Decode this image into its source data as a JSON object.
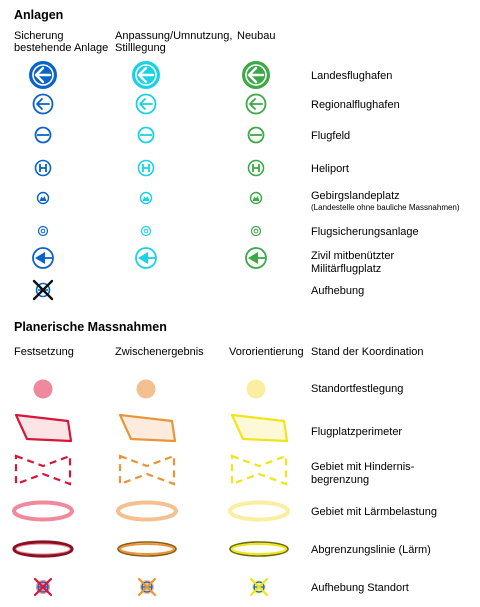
{
  "colors": {
    "blue": "#0a64c8",
    "cyan": "#18d2e6",
    "green": "#3ca846",
    "red": "#d4173a",
    "orange": "#e8953a",
    "yellow": "#f0e51a",
    "pink": "#f0899b",
    "peach": "#f5c090",
    "lightyellow": "#faeea0"
  },
  "anlagen": {
    "title": "Anlagen",
    "columns": [
      "Sicherung\nbestehende Anlage",
      "Anpassung/Umnutzung,\nStilllegung",
      "Neubau"
    ],
    "col1_line1": "Sicherung",
    "col1_line2": "bestehende Anlage",
    "col2_line1": "Anpassung/Umnutzung,",
    "col2_line2": "Stilllegung",
    "col3": "Neubau",
    "rows": [
      {
        "label": "Landesflughafen",
        "icon": "landesflughafen-icon"
      },
      {
        "label": "Regionalflughafen",
        "icon": "regionalflughafen-icon"
      },
      {
        "label": "Flugfeld",
        "icon": "flugfeld-icon"
      },
      {
        "label": "Heliport",
        "icon": "heliport-icon"
      },
      {
        "label": "Gebirgslandeplatz",
        "note": "(Landestelle ohne bauliche Massnahmen)",
        "icon": "gebirgslandeplatz-icon"
      },
      {
        "label": "Flugsicherungsanlage",
        "icon": "flugsicherung-icon"
      },
      {
        "label": "Zivil mitbenützter",
        "label2": "Militärflugplatz",
        "icon": "militaerflugplatz-icon"
      },
      {
        "label": "Aufhebung",
        "icon": "aufhebung-icon"
      }
    ]
  },
  "massnahmen": {
    "title": "Planerische Massnahmen",
    "col1": "Festsetzung",
    "col2": "Zwischenergebnis",
    "col3": "Vororientierung",
    "col4": "Stand der Koordination",
    "rows": [
      {
        "label": "Standortfestlegung",
        "icon": "dot-icon"
      },
      {
        "label": "Flugplatzperimeter",
        "icon": "perimeter-icon"
      },
      {
        "label": "Gebiet mit Hindernis-",
        "label2": "begrenzung",
        "icon": "hindernis-icon"
      },
      {
        "label": "Gebiet mit Lärmbelastung",
        "icon": "laerm-ring-icon"
      },
      {
        "label": "Abgrenzungslinie (Lärm)",
        "icon": "laerm-line-icon"
      },
      {
        "label": "Aufhebung Standort",
        "icon": "aufhebung-standort-icon"
      }
    ]
  }
}
